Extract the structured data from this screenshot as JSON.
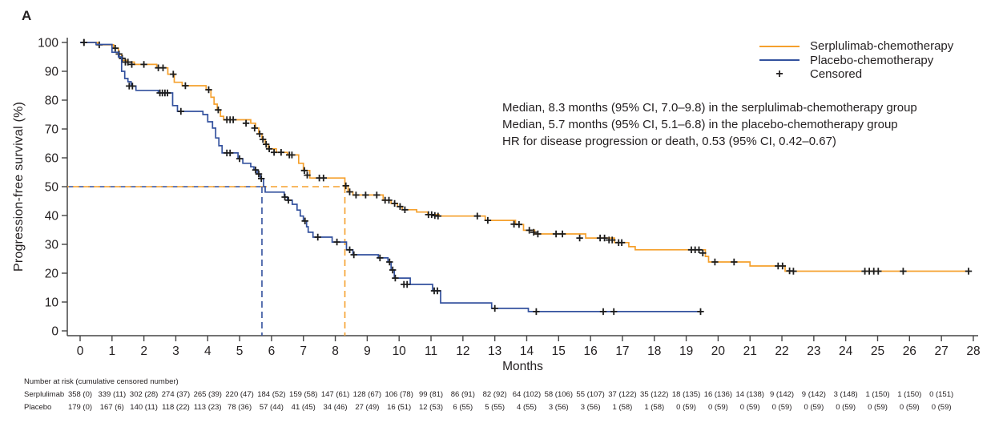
{
  "figure": {
    "panel_label": "A"
  },
  "legend": {
    "items": [
      {
        "label": "Serplulimab-chemotherapy",
        "type": "line",
        "color": "#F5A02D"
      },
      {
        "label": "Placebo-chemotherapy",
        "type": "line",
        "color": "#33519E"
      },
      {
        "label": "Censored",
        "type": "marker",
        "symbol": "+",
        "color": "#1c1c1c"
      }
    ]
  },
  "annotations": {
    "lines": [
      "Median, 8.3 months (95% CI, 7.0–9.8) in the serplulimab-chemotherapy group",
      "Median, 5.7 months (95% CI, 5.1–6.8) in the placebo-chemotherapy group",
      "HR for disease progression or death, 0.53 (95% CI, 0.42–0.67)"
    ]
  },
  "chart_data": {
    "type": "line",
    "subtype": "kaplan_meier_step",
    "title": "A",
    "xlabel": "Months",
    "ylabel": "Progression-free survival (%)",
    "xlim": [
      0,
      28
    ],
    "ylim": [
      0,
      100
    ],
    "xticks": [
      0,
      1,
      2,
      3,
      4,
      5,
      6,
      7,
      8,
      9,
      10,
      11,
      12,
      13,
      14,
      15,
      16,
      17,
      18,
      19,
      20,
      21,
      22,
      23,
      24,
      25,
      26,
      27,
      28
    ],
    "yticks": [
      0,
      10,
      20,
      30,
      40,
      50,
      60,
      70,
      80,
      90,
      100
    ],
    "grid": false,
    "legend_position": "top-right",
    "medians": {
      "pct": 50,
      "serplulimab_months": 8.3,
      "placebo_months": 5.7,
      "dash_color_serplulimab": "#F5A02D",
      "dash_color_placebo": "#33519E"
    },
    "series": [
      {
        "name": "Serplulimab-chemotherapy",
        "color": "#F5A02D",
        "end_month": 27.9,
        "steps": [
          [
            0,
            100
          ],
          [
            0.55,
            99.2
          ],
          [
            1.05,
            98
          ],
          [
            1.2,
            96
          ],
          [
            1.3,
            93.8
          ],
          [
            1.45,
            93.2
          ],
          [
            1.7,
            92.4
          ],
          [
            2.4,
            91.2
          ],
          [
            2.75,
            89
          ],
          [
            2.95,
            86.2
          ],
          [
            3.2,
            85
          ],
          [
            3.95,
            83.6
          ],
          [
            4.1,
            81
          ],
          [
            4.2,
            78.6
          ],
          [
            4.3,
            76.6
          ],
          [
            4.4,
            74.4
          ],
          [
            4.5,
            73.2
          ],
          [
            5.35,
            72
          ],
          [
            5.5,
            70.3
          ],
          [
            5.6,
            68.3
          ],
          [
            5.7,
            66.4
          ],
          [
            5.8,
            64.7
          ],
          [
            5.9,
            63.1
          ],
          [
            6.15,
            61.9
          ],
          [
            6.5,
            61
          ],
          [
            6.85,
            58.1
          ],
          [
            7,
            55.6
          ],
          [
            7.2,
            53
          ],
          [
            8.3,
            50.3
          ],
          [
            8.4,
            48.2
          ],
          [
            8.55,
            47.1
          ],
          [
            9.5,
            45.3
          ],
          [
            9.75,
            44.2
          ],
          [
            9.95,
            43.1
          ],
          [
            10.1,
            42
          ],
          [
            10.55,
            41.2
          ],
          [
            10.9,
            40.3
          ],
          [
            11.25,
            39.8
          ],
          [
            12.7,
            38.3
          ],
          [
            13.65,
            36.9
          ],
          [
            13.9,
            34.9
          ],
          [
            14.25,
            33.6
          ],
          [
            15.85,
            32.2
          ],
          [
            16.75,
            30.6
          ],
          [
            17.2,
            29.2
          ],
          [
            17.4,
            28.1
          ],
          [
            19.6,
            25.8
          ],
          [
            19.7,
            23.9
          ],
          [
            21,
            22.5
          ],
          [
            22.1,
            20.7
          ]
        ],
        "censors": [
          [
            0.12,
            100
          ],
          [
            0.6,
            99.2
          ],
          [
            1.1,
            98
          ],
          [
            1.22,
            96
          ],
          [
            1.32,
            94.5
          ],
          [
            1.42,
            93.2
          ],
          [
            1.5,
            93.2
          ],
          [
            1.62,
            92.4
          ],
          [
            2,
            92.4
          ],
          [
            2.45,
            91.2
          ],
          [
            2.6,
            91.2
          ],
          [
            2.92,
            89
          ],
          [
            3.3,
            85
          ],
          [
            4.03,
            83.6
          ],
          [
            4.33,
            76.6
          ],
          [
            4.6,
            73.2
          ],
          [
            4.7,
            73.2
          ],
          [
            4.8,
            73.2
          ],
          [
            5.2,
            72
          ],
          [
            5.47,
            70.3
          ],
          [
            5.63,
            68.3
          ],
          [
            5.73,
            66.4
          ],
          [
            5.83,
            64.7
          ],
          [
            5.93,
            63.1
          ],
          [
            6.08,
            61.9
          ],
          [
            6.3,
            61.9
          ],
          [
            6.56,
            61
          ],
          [
            6.64,
            61
          ],
          [
            7.03,
            55.6
          ],
          [
            7.12,
            54
          ],
          [
            7.5,
            53
          ],
          [
            7.63,
            53
          ],
          [
            8.33,
            50.3
          ],
          [
            8.45,
            48.2
          ],
          [
            8.65,
            47.1
          ],
          [
            8.95,
            47.1
          ],
          [
            9.3,
            47.1
          ],
          [
            9.56,
            45.3
          ],
          [
            9.68,
            45.3
          ],
          [
            9.86,
            44.2
          ],
          [
            10.03,
            43.1
          ],
          [
            10.18,
            42
          ],
          [
            10.92,
            40.3
          ],
          [
            11.02,
            40.3
          ],
          [
            11.12,
            40
          ],
          [
            11.22,
            39.8
          ],
          [
            12.45,
            39.8
          ],
          [
            12.78,
            38.3
          ],
          [
            13.6,
            37
          ],
          [
            13.76,
            36.9
          ],
          [
            14.08,
            34.9
          ],
          [
            14.22,
            34.2
          ],
          [
            14.35,
            33.6
          ],
          [
            14.92,
            33.6
          ],
          [
            15.12,
            33.6
          ],
          [
            15.66,
            32.2
          ],
          [
            16.3,
            32.2
          ],
          [
            16.44,
            32.2
          ],
          [
            16.58,
            31.5
          ],
          [
            16.68,
            31.5
          ],
          [
            16.88,
            30.6
          ],
          [
            16.98,
            30.6
          ],
          [
            19.16,
            28.1
          ],
          [
            19.28,
            28.1
          ],
          [
            19.4,
            28.1
          ],
          [
            19.52,
            27
          ],
          [
            19.9,
            23.9
          ],
          [
            20.5,
            23.9
          ],
          [
            21.88,
            22.5
          ],
          [
            22.02,
            22.5
          ],
          [
            22.24,
            20.8
          ],
          [
            22.36,
            20.7
          ],
          [
            24.6,
            20.7
          ],
          [
            24.74,
            20.7
          ],
          [
            24.88,
            20.7
          ],
          [
            25.02,
            20.7
          ],
          [
            25.8,
            20.7
          ],
          [
            27.85,
            20.7
          ]
        ]
      },
      {
        "name": "Placebo-chemotherapy",
        "color": "#33519E",
        "end_month": 19.5,
        "steps": [
          [
            0,
            100
          ],
          [
            0.5,
            99.3
          ],
          [
            1,
            96.6
          ],
          [
            1.2,
            95
          ],
          [
            1.3,
            90
          ],
          [
            1.4,
            87.5
          ],
          [
            1.5,
            86.4
          ],
          [
            1.6,
            84.9
          ],
          [
            1.75,
            83.4
          ],
          [
            2.45,
            82.5
          ],
          [
            2.9,
            78.1
          ],
          [
            3.05,
            76.1
          ],
          [
            3.85,
            75
          ],
          [
            4,
            72.5
          ],
          [
            4.15,
            70.3
          ],
          [
            4.25,
            66.9
          ],
          [
            4.35,
            64.2
          ],
          [
            4.45,
            61.7
          ],
          [
            4.95,
            59.7
          ],
          [
            5.1,
            58.1
          ],
          [
            5.35,
            56.9
          ],
          [
            5.45,
            55.8
          ],
          [
            5.55,
            54.4
          ],
          [
            5.65,
            52.8
          ],
          [
            5.75,
            50
          ],
          [
            5.8,
            48.1
          ],
          [
            6.4,
            46.4
          ],
          [
            6.5,
            45.3
          ],
          [
            6.65,
            43.9
          ],
          [
            6.8,
            41.9
          ],
          [
            6.9,
            39.8
          ],
          [
            7,
            38.1
          ],
          [
            7.1,
            36.1
          ],
          [
            7.15,
            34.2
          ],
          [
            7.3,
            32.5
          ],
          [
            7.9,
            30.8
          ],
          [
            8.35,
            28.1
          ],
          [
            8.55,
            26.4
          ],
          [
            9.35,
            25.3
          ],
          [
            9.65,
            23.9
          ],
          [
            9.75,
            21.1
          ],
          [
            9.85,
            18.3
          ],
          [
            10.35,
            16.1
          ],
          [
            11.05,
            13.9
          ],
          [
            11.3,
            9.7
          ],
          [
            12.9,
            7.8
          ],
          [
            14.05,
            6.7
          ]
        ],
        "censors": [
          [
            0.12,
            100
          ],
          [
            1.54,
            84.9
          ],
          [
            1.64,
            84.9
          ],
          [
            2.5,
            82.5
          ],
          [
            2.58,
            82.5
          ],
          [
            2.66,
            82.5
          ],
          [
            2.74,
            82.5
          ],
          [
            3.16,
            76.1
          ],
          [
            4.6,
            61.7
          ],
          [
            4.7,
            61.7
          ],
          [
            5,
            59.7
          ],
          [
            5.5,
            55.8
          ],
          [
            5.6,
            54.4
          ],
          [
            5.68,
            52.8
          ],
          [
            6.42,
            46.4
          ],
          [
            6.53,
            45.3
          ],
          [
            7.05,
            38.1
          ],
          [
            7.45,
            32.5
          ],
          [
            8.05,
            30.8
          ],
          [
            8.45,
            28.1
          ],
          [
            8.58,
            26.4
          ],
          [
            9.4,
            25.3
          ],
          [
            9.7,
            23.9
          ],
          [
            9.8,
            21.1
          ],
          [
            9.88,
            18.3
          ],
          [
            10.15,
            16.1
          ],
          [
            10.25,
            16.1
          ],
          [
            11.1,
            13.9
          ],
          [
            11.2,
            13.9
          ],
          [
            13,
            7.8
          ],
          [
            14.3,
            6.7
          ],
          [
            16.4,
            6.7
          ],
          [
            16.73,
            6.7
          ],
          [
            19.45,
            6.7
          ]
        ]
      }
    ],
    "number_at_risk": {
      "header": "Number at risk (cumulative censored number)",
      "groups": [
        {
          "label": "Serplulimab",
          "values": [
            "358 (0)",
            "339 (11)",
            "302 (28)",
            "274 (37)",
            "265 (39)",
            "220 (47)",
            "184 (52)",
            "159 (58)",
            "147 (61)",
            "128 (67)",
            "106 (78)",
            "99 (81)",
            "86 (91)",
            "82 (92)",
            "64 (102)",
            "58 (106)",
            "55 (107)",
            "37 (122)",
            "35 (122)",
            "18 (135)",
            "16 (136)",
            "14 (138)",
            "9 (142)",
            "9 (142)",
            "3 (148)",
            "1 (150)",
            "1 (150)",
            "0 (151)"
          ]
        },
        {
          "label": "Placebo",
          "values": [
            "179 (0)",
            "167 (6)",
            "140 (11)",
            "118 (22)",
            "113 (23)",
            "78 (36)",
            "57 (44)",
            "41 (45)",
            "34 (46)",
            "27 (49)",
            "16 (51)",
            "12 (53)",
            "6 (55)",
            "5 (55)",
            "4 (55)",
            "3 (56)",
            "3 (56)",
            "1 (58)",
            "1 (58)",
            "0 (59)",
            "0 (59)",
            "0 (59)",
            "0 (59)",
            "0 (59)",
            "0 (59)",
            "0 (59)",
            "0 (59)",
            "0 (59)"
          ]
        }
      ]
    }
  }
}
